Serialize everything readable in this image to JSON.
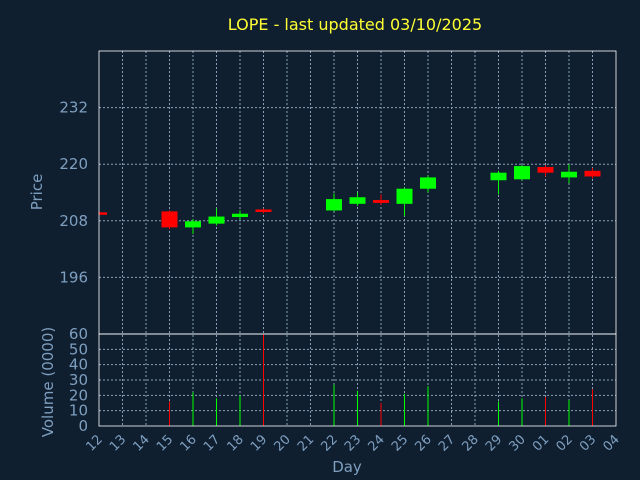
{
  "chart_data": {
    "type": "candlestick",
    "title": "LOPE - last updated 03/10/2025",
    "xlabel": "Day",
    "price_ylabel": "Price",
    "volume_ylabel": "Volume (0000)",
    "x_ticks": [
      "12",
      "13",
      "14",
      "15",
      "16",
      "17",
      "18",
      "19",
      "20",
      "21",
      "22",
      "23",
      "24",
      "25",
      "26",
      "27",
      "28",
      "29",
      "30",
      "01",
      "02",
      "03",
      "04"
    ],
    "price_ticks": [
      196,
      208,
      220,
      232
    ],
    "price_ylim": [
      184,
      244
    ],
    "volume_ticks": [
      0,
      10,
      20,
      30,
      40,
      50,
      60
    ],
    "volume_ylim": [
      0,
      60
    ],
    "grid": true,
    "up_color": "#00ff00",
    "down_color": "#ff0000",
    "candles": [
      {
        "day": "12",
        "open": 209.8,
        "high": 210.1,
        "low": 209.4,
        "close": 209.7,
        "volume": 0
      },
      {
        "day": "15",
        "open": 210.0,
        "high": 210.2,
        "low": 206.2,
        "close": 206.6,
        "volume": 16
      },
      {
        "day": "16",
        "open": 206.6,
        "high": 208.4,
        "low": 205.2,
        "close": 207.9,
        "volume": 22
      },
      {
        "day": "17",
        "open": 207.4,
        "high": 210.6,
        "low": 207.0,
        "close": 208.9,
        "volume": 18
      },
      {
        "day": "18",
        "open": 208.8,
        "high": 210.2,
        "low": 208.2,
        "close": 209.5,
        "volume": 20
      },
      {
        "day": "19",
        "open": 210.4,
        "high": 210.6,
        "low": 209.6,
        "close": 209.9,
        "volume": 60
      },
      {
        "day": "22",
        "open": 210.2,
        "high": 213.8,
        "low": 210.0,
        "close": 212.6,
        "volume": 27
      },
      {
        "day": "23",
        "open": 211.6,
        "high": 214.0,
        "low": 211.2,
        "close": 213.0,
        "volume": 23
      },
      {
        "day": "24",
        "open": 212.4,
        "high": 213.6,
        "low": 211.4,
        "close": 211.8,
        "volume": 15
      },
      {
        "day": "25",
        "open": 211.6,
        "high": 215.0,
        "low": 209.0,
        "close": 214.8,
        "volume": 21
      },
      {
        "day": "26",
        "open": 214.8,
        "high": 217.6,
        "low": 214.0,
        "close": 217.2,
        "volume": 26
      },
      {
        "day": "29",
        "open": 216.6,
        "high": 218.6,
        "low": 213.6,
        "close": 218.2,
        "volume": 16
      },
      {
        "day": "30",
        "open": 216.8,
        "high": 219.8,
        "low": 216.6,
        "close": 219.6,
        "volume": 18
      },
      {
        "day": "01",
        "open": 219.4,
        "high": 219.8,
        "low": 217.4,
        "close": 218.2,
        "volume": 19
      },
      {
        "day": "02",
        "open": 217.2,
        "high": 220.0,
        "low": 216.0,
        "close": 218.4,
        "volume": 17
      },
      {
        "day": "03",
        "open": 218.6,
        "high": 219.2,
        "low": 217.0,
        "close": 217.4,
        "volume": 24
      }
    ]
  }
}
